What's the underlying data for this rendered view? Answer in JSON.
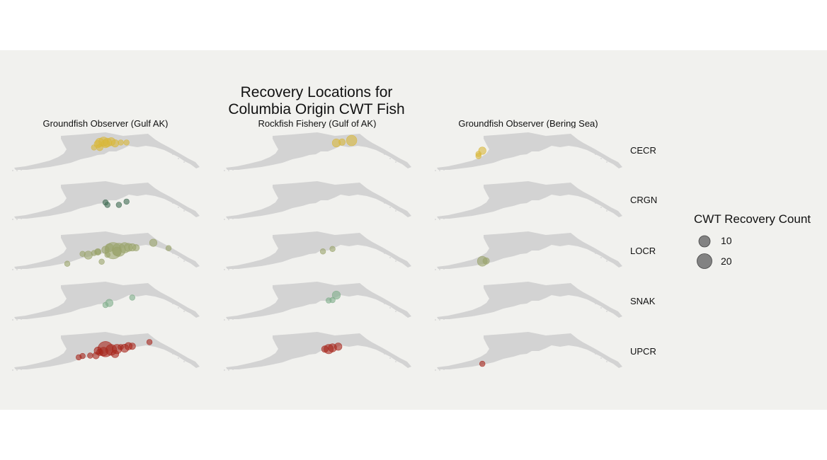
{
  "title_lines": [
    "Recovery Locations for",
    "Columbia Origin CWT Fish"
  ],
  "columns": [
    "Groundfish Observer (Gulf AK)",
    "Rockfish Fishery (Gulf of AK)",
    "Groundfish Observer (Bering Sea)"
  ],
  "rows": [
    "CECR",
    "CRGN",
    "LOCR",
    "SNAK",
    "UPCR"
  ],
  "legend": {
    "title": "CWT Recovery Count",
    "items": [
      {
        "label": "10",
        "count": 10
      },
      {
        "label": "20",
        "count": 20
      }
    ]
  },
  "colors": {
    "land": "#d3d3d3",
    "CECR": "#d9b83a",
    "CRGN": "#3f6a52",
    "LOCR": "#9aa36a",
    "SNAK": "#7fae8a",
    "UPCR": "#a7261c",
    "legend": "#6e6e6e"
  },
  "chart_data": {
    "type": "scatter",
    "size_variable": "CWT Recovery Count",
    "coordinate_units": "fraction of map panel width/height",
    "panels": {
      "CECR": {
        "Groundfish Observer (Gulf AK)": [
          [
            0.47,
            0.3,
            5
          ],
          [
            0.49,
            0.28,
            6
          ],
          [
            0.51,
            0.3,
            5
          ],
          [
            0.53,
            0.28,
            4
          ],
          [
            0.55,
            0.32,
            3
          ],
          [
            0.5,
            0.33,
            4
          ],
          [
            0.46,
            0.34,
            3
          ],
          [
            0.44,
            0.42,
            1
          ],
          [
            0.47,
            0.42,
            2
          ],
          [
            0.58,
            0.3,
            1
          ],
          [
            0.61,
            0.3,
            1
          ]
        ],
        "Rockfish Fishery (Gulf of AK)": [
          [
            0.6,
            0.31,
            4
          ],
          [
            0.63,
            0.29,
            2
          ],
          [
            0.68,
            0.25,
            8
          ]
        ],
        "Groundfish Observer (Bering Sea)": [
          [
            0.26,
            0.5,
            3
          ],
          [
            0.24,
            0.58,
            1
          ],
          [
            0.24,
            0.63,
            1
          ]
        ]
      },
      "CRGN": {
        "Groundfish Observer (Gulf AK)": [
          [
            0.5,
            0.57,
            1
          ],
          [
            0.51,
            0.63,
            1
          ],
          [
            0.57,
            0.63,
            1
          ],
          [
            0.61,
            0.55,
            1
          ]
        ],
        "Rockfish Fishery (Gulf of AK)": [],
        "Groundfish Observer (Bering Sea)": []
      },
      "LOCR": {
        "Groundfish Observer (Gulf AK)": [
          [
            0.54,
            0.52,
            26
          ],
          [
            0.57,
            0.5,
            15
          ],
          [
            0.6,
            0.45,
            8
          ],
          [
            0.62,
            0.44,
            4
          ],
          [
            0.64,
            0.44,
            3
          ],
          [
            0.66,
            0.45,
            2
          ],
          [
            0.52,
            0.45,
            4
          ],
          [
            0.5,
            0.5,
            3
          ],
          [
            0.46,
            0.55,
            2
          ],
          [
            0.41,
            0.63,
            4
          ],
          [
            0.38,
            0.6,
            1
          ],
          [
            0.44,
            0.58,
            1
          ],
          [
            0.46,
            0.55,
            1
          ],
          [
            0.51,
            0.62,
            1
          ],
          [
            0.48,
            0.79,
            1
          ],
          [
            0.3,
            0.84,
            1
          ],
          [
            0.75,
            0.33,
            3
          ],
          [
            0.83,
            0.46,
            1
          ],
          [
            0.56,
            0.54,
            5
          ]
        ],
        "Rockfish Fishery (Gulf of AK)": [
          [
            0.53,
            0.54,
            1
          ],
          [
            0.58,
            0.48,
            1
          ]
        ],
        "Groundfish Observer (Bering Sea)": [
          [
            0.26,
            0.78,
            7
          ],
          [
            0.28,
            0.77,
            2
          ]
        ]
      },
      "SNAK": {
        "Groundfish Observer (Gulf AK)": [
          [
            0.52,
            0.57,
            3
          ],
          [
            0.5,
            0.62,
            1
          ],
          [
            0.64,
            0.44,
            1
          ]
        ],
        "Rockfish Fishery (Gulf of AK)": [
          [
            0.6,
            0.38,
            4
          ],
          [
            0.56,
            0.51,
            1
          ],
          [
            0.58,
            0.5,
            1
          ]
        ],
        "Groundfish Observer (Bering Sea)": []
      },
      "UPCR": {
        "Groundfish Observer (Gulf AK)": [
          [
            0.5,
            0.47,
            22
          ],
          [
            0.53,
            0.49,
            9
          ],
          [
            0.56,
            0.47,
            6
          ],
          [
            0.49,
            0.53,
            5
          ],
          [
            0.46,
            0.51,
            3
          ],
          [
            0.55,
            0.59,
            3
          ],
          [
            0.6,
            0.45,
            4
          ],
          [
            0.62,
            0.4,
            3
          ],
          [
            0.64,
            0.4,
            2
          ],
          [
            0.58,
            0.42,
            1
          ],
          [
            0.45,
            0.63,
            2
          ],
          [
            0.47,
            0.55,
            2
          ],
          [
            0.42,
            0.63,
            1
          ],
          [
            0.38,
            0.64,
            1
          ],
          [
            0.36,
            0.67,
            1
          ],
          [
            0.73,
            0.3,
            1
          ]
        ],
        "Rockfish Fishery (Gulf of AK)": [
          [
            0.56,
            0.47,
            6
          ],
          [
            0.58,
            0.44,
            4
          ],
          [
            0.61,
            0.41,
            3
          ],
          [
            0.54,
            0.47,
            2
          ]
        ],
        "Groundfish Observer (Bering Sea)": [
          [
            0.26,
            0.83,
            1
          ]
        ]
      }
    }
  }
}
